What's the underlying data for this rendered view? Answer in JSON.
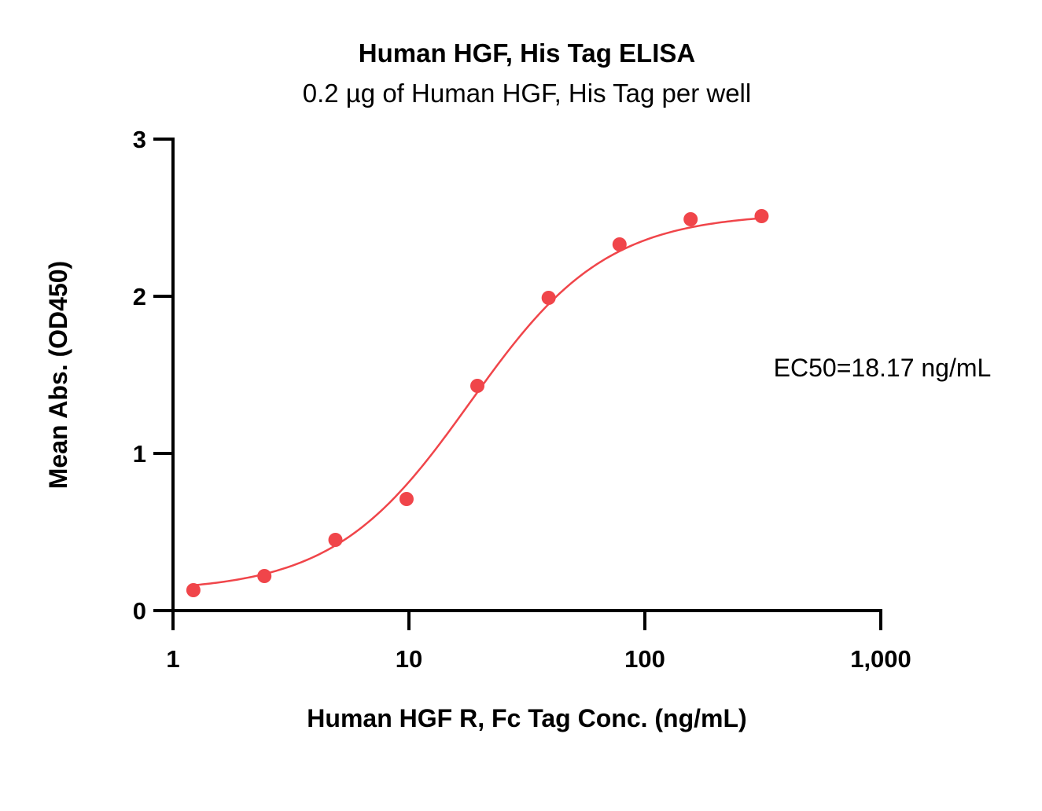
{
  "chart_data": {
    "type": "scatter",
    "title": "Human HGF, His Tag ELISA",
    "subtitle": "0.2 µg of Human HGF, His Tag per well",
    "xlabel": "Human HGF R, Fc Tag Conc. (ng/mL)",
    "ylabel": "Mean Abs. (OD450)",
    "x_scale": "log",
    "xlim": [
      1,
      1000
    ],
    "ylim": [
      0,
      3
    ],
    "x_ticks": [
      1,
      10,
      100,
      1000
    ],
    "x_tick_labels": [
      "1",
      "10",
      "100",
      "1,000"
    ],
    "y_ticks": [
      0,
      1,
      2,
      3
    ],
    "y_tick_labels": [
      "0",
      "1",
      "2",
      "3"
    ],
    "grid": false,
    "annotation": "EC50=18.17 ng/mL",
    "color": "#f0454a",
    "series": [
      {
        "x": [
          1.22,
          2.44,
          4.88,
          9.77,
          19.5,
          39.1,
          78.1,
          156.3,
          312.5
        ],
        "y": [
          0.13,
          0.22,
          0.45,
          0.71,
          1.43,
          1.99,
          2.33,
          2.49,
          2.51
        ]
      }
    ],
    "fit": {
      "model": "4PL",
      "bottom": 0.12,
      "top": 2.53,
      "ec50": 18.17,
      "hill": 1.5
    }
  }
}
